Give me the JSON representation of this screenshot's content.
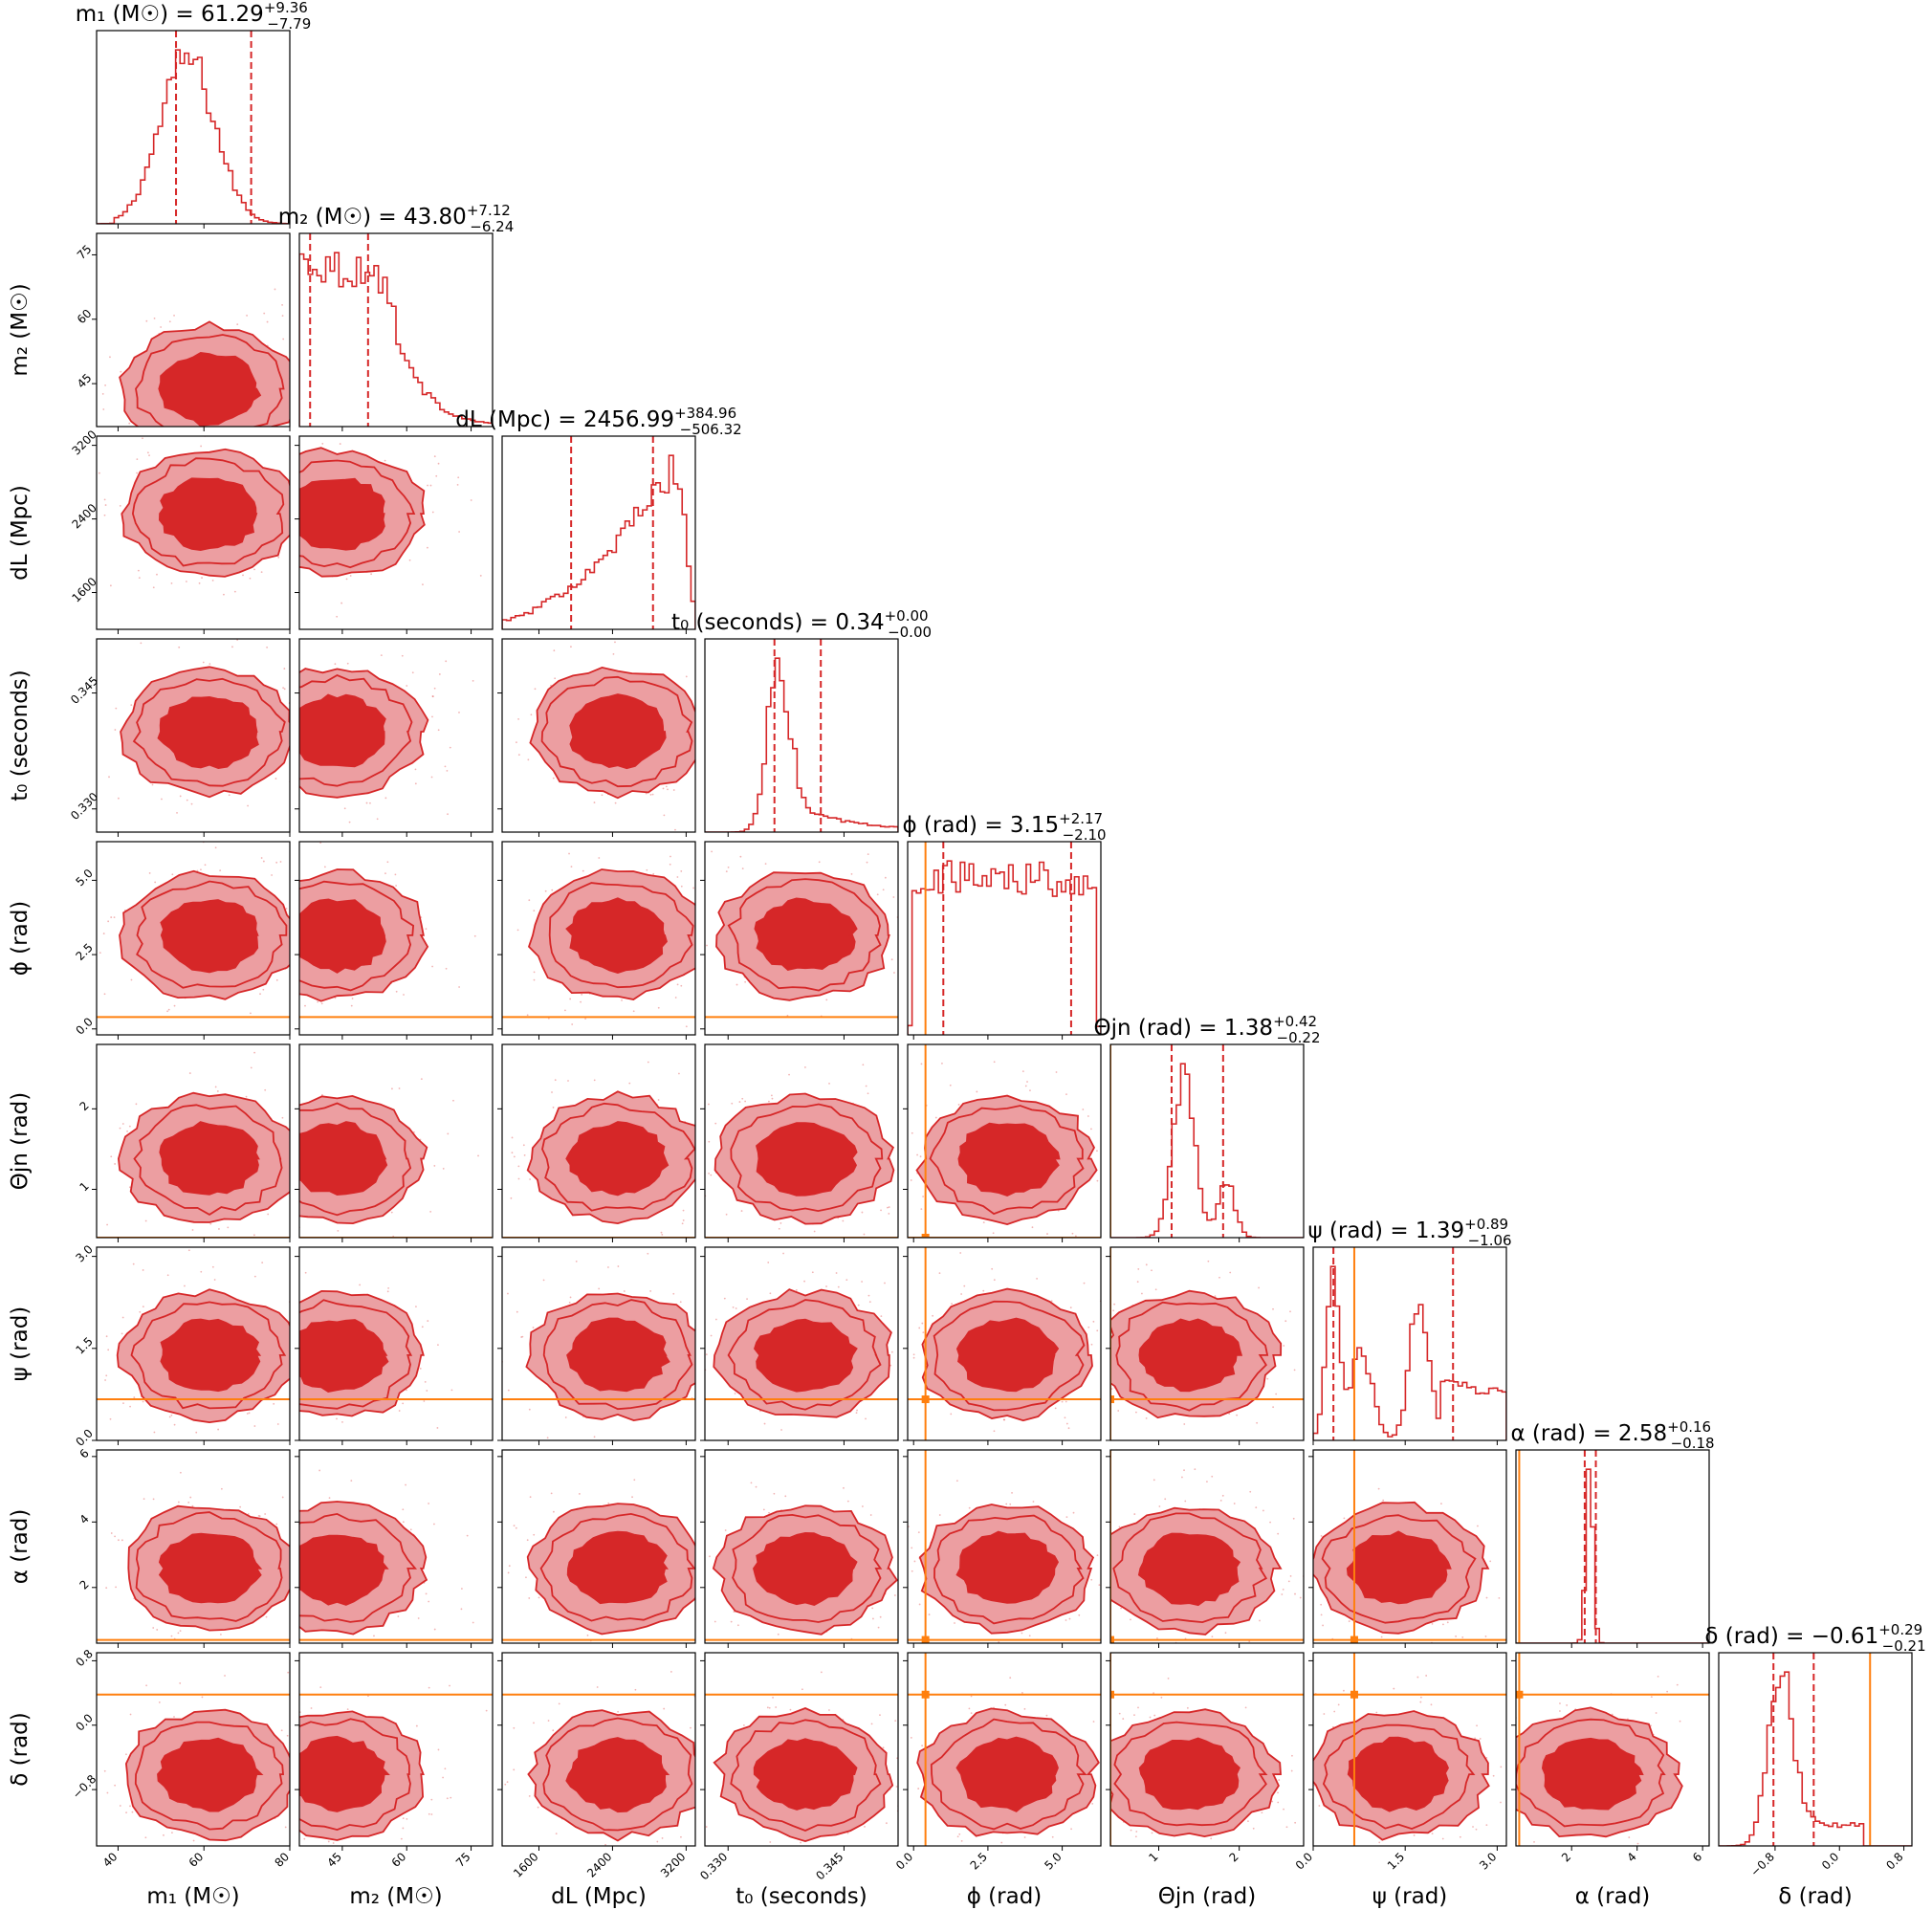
{
  "chart_data": {
    "type": "corner",
    "colors": {
      "posterior": "#d62728",
      "truth": "#ff7f0e"
    },
    "parameters": [
      {
        "key": "m1",
        "label": "m₁ (M☉)",
        "title": "m₁ (M☉) = 61.29",
        "median": 61.29,
        "plus": "+9.36",
        "minus": "−7.79",
        "range": [
          35,
          80
        ],
        "ticks": [
          40,
          60,
          80
        ],
        "tick_labels": [
          "40",
          "60",
          "80"
        ],
        "hist_type": "bell",
        "truth": null
      },
      {
        "key": "m2",
        "label": "m₂ (M☉)",
        "title": "m₂ (M☉) = 43.80",
        "median": 43.8,
        "plus": "+7.12",
        "minus": "−6.24",
        "range": [
          35,
          80
        ],
        "ticks": [
          45,
          60,
          75
        ],
        "tick_labels": [
          "45",
          "60",
          "75"
        ],
        "hist_type": "decay",
        "truth": null
      },
      {
        "key": "dL",
        "label": "dL (Mpc)",
        "title": "dL (Mpc) = 2456.99",
        "median": 2456.99,
        "plus": "+384.96",
        "minus": "−506.32",
        "range": [
          1200,
          3300
        ],
        "ticks": [
          1600,
          2400,
          3200
        ],
        "tick_labels": [
          "1600",
          "2400",
          "3200"
        ],
        "hist_type": "rise",
        "truth": null
      },
      {
        "key": "t0",
        "label": "t₀ (seconds)",
        "title": "t₀ (seconds) = 0.34",
        "median": 0.34,
        "plus": "+0.00",
        "minus": "−0.00",
        "range": [
          0.327,
          0.352
        ],
        "ticks": [
          0.33,
          0.345
        ],
        "tick_labels": [
          "0.330",
          "0.345"
        ],
        "hist_type": "peak",
        "truth": null
      },
      {
        "key": "phi",
        "label": "ϕ (rad)",
        "title": "ϕ (rad) = 3.15",
        "median": 3.15,
        "plus": "+2.17",
        "minus": "−2.10",
        "range": [
          -0.2,
          6.3
        ],
        "ticks": [
          0.0,
          2.5,
          5.0
        ],
        "tick_labels": [
          "0.0",
          "2.5",
          "5.0"
        ],
        "hist_type": "flat",
        "truth": 0.4
      },
      {
        "key": "theta",
        "label": "Θjn (rad)",
        "title": "Θjn (rad) = 1.38",
        "median": 1.38,
        "plus": "+0.42",
        "minus": "−0.22",
        "range": [
          0.4,
          2.8
        ],
        "ticks": [
          1,
          2
        ],
        "tick_labels": [
          "1",
          "2"
        ],
        "hist_type": "narrow",
        "truth": 0.4
      },
      {
        "key": "psi",
        "label": "ψ (rad)",
        "title": "ψ (rad) = 1.39",
        "median": 1.39,
        "plus": "+0.89",
        "minus": "−1.06",
        "range": [
          0.0,
          3.15
        ],
        "ticks": [
          0.0,
          1.5,
          3.0
        ],
        "tick_labels": [
          "0.0",
          "1.5",
          "3.0"
        ],
        "hist_type": "bimodal",
        "truth": 0.67
      },
      {
        "key": "alpha",
        "label": "α (rad)",
        "title": "α (rad) = 2.58",
        "median": 2.58,
        "plus": "+0.16",
        "minus": "−0.18",
        "range": [
          0.3,
          6.2
        ],
        "ticks": [
          2,
          4,
          6
        ],
        "tick_labels": [
          "2",
          "4",
          "6"
        ],
        "hist_type": "spike",
        "truth": 0.4
      },
      {
        "key": "delta",
        "label": "δ (rad)",
        "title": "δ (rad) = −0.61",
        "median": -0.61,
        "plus": "+0.29",
        "minus": "−0.21",
        "range": [
          -1.5,
          0.9
        ],
        "ticks": [
          -0.8,
          0.0,
          0.8
        ],
        "tick_labels": [
          "−0.8",
          "0.0",
          "0.8"
        ],
        "hist_type": "skewpeak",
        "truth": 0.38
      }
    ],
    "quantile_lines": [
      [
        53.5,
        71.0
      ],
      [
        37.5,
        51.0
      ],
      [
        1950,
        2840
      ],
      [
        0.336,
        0.342
      ],
      [
        1.0,
        5.3
      ],
      [
        1.16,
        1.8
      ],
      [
        0.33,
        2.28
      ],
      [
        2.4,
        2.74
      ],
      [
        -0.82,
        -0.32
      ]
    ]
  }
}
